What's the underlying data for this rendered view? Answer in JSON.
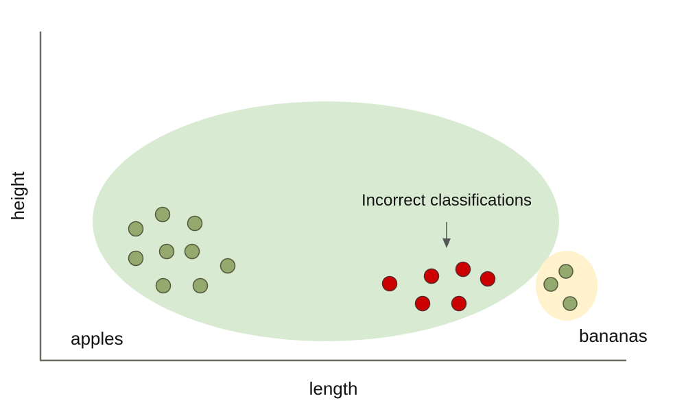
{
  "axes": {
    "x_label": "length",
    "y_label": "height"
  },
  "groups": [
    {
      "label": "apples",
      "region_color": "#d9ead3"
    },
    {
      "label": "bananas",
      "region_color": "#fff2cc"
    }
  ],
  "annotation": {
    "text": "Incorrect classifications"
  },
  "point_styles": {
    "correct": {
      "fill": "#93a96d",
      "stroke": "#55583d"
    },
    "incorrect": {
      "fill": "#cc0000",
      "stroke": "#5a2a2a"
    }
  },
  "axis_color": "#6b6e63"
}
